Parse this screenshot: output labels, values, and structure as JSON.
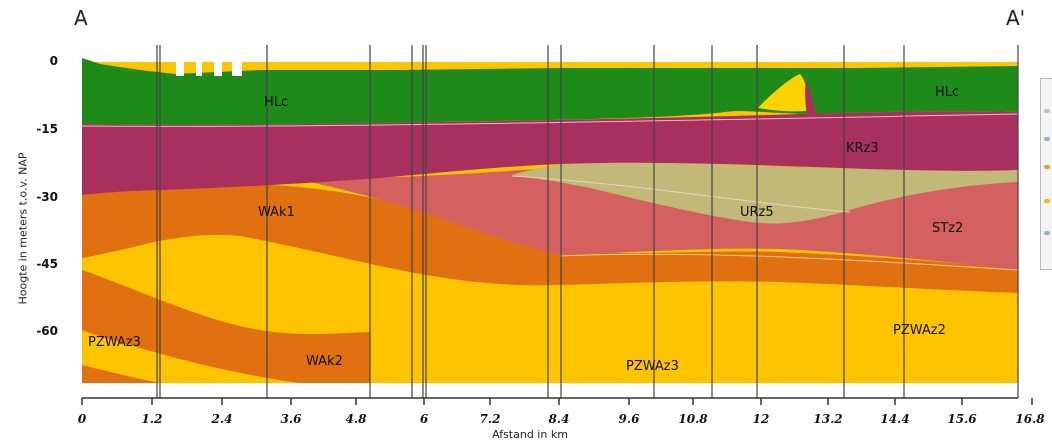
{
  "section": {
    "start_label": "A",
    "end_label": "A'",
    "y_axis_label": "Hoogte in meters t.o.v. NAP",
    "x_axis_label": "Afstand in km",
    "y_ticks": [
      "0",
      "-15",
      "-30",
      "-45",
      "-60"
    ],
    "x_ticks": [
      "0",
      "1.2",
      "2.4",
      "3.6",
      "4.8",
      "6",
      "7.2",
      "8.4",
      "9.6",
      "10.8",
      "12",
      "13.2",
      "14.4",
      "15.6",
      "16.8"
    ]
  },
  "units": [
    {
      "label": "HLc",
      "color": "#1e8a1a"
    },
    {
      "label": "KRz3",
      "color": "#a8305e"
    },
    {
      "label": "WAk1",
      "color": "#e07010"
    },
    {
      "label": "URz5",
      "color": "#c2b878"
    },
    {
      "label": "STz2",
      "color": "#d46060"
    },
    {
      "label": "WAk2",
      "color": "#e07010"
    },
    {
      "label": "PZWAz3",
      "color": "#ffc400"
    },
    {
      "label": "PZWAz2",
      "color": "#ffc400"
    }
  ],
  "colors": {
    "holocene": "#1e8a1a",
    "kreftenheye": "#a8305e",
    "waalre_clay": "#e07010",
    "urk": "#c2b878",
    "sterksel": "#d46060",
    "peize_waalre": "#ffc400",
    "borehole_line": "#444444"
  }
}
